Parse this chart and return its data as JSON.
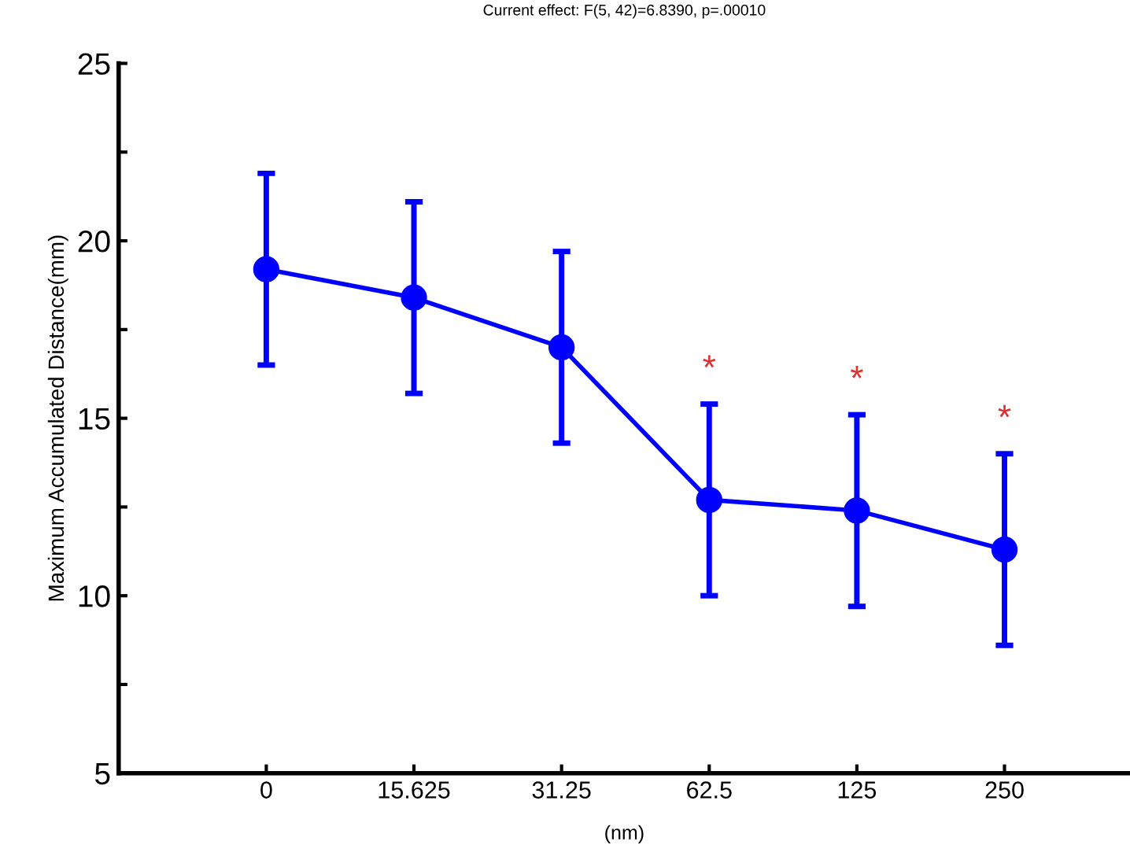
{
  "chart_data": {
    "type": "line",
    "title": "Current effect: F(5, 42)=6.8390, p=.00010",
    "xlabel": "(nm)",
    "ylabel": "Maximum Accumulated Distance(mm)",
    "categories": [
      "0",
      "15.625",
      "31.25",
      "62.5",
      "125",
      "250"
    ],
    "series": [
      {
        "color": "#0000ff",
        "values": [
          19.2,
          18.4,
          17.0,
          12.7,
          12.4,
          11.3
        ],
        "errors": [
          2.7,
          2.7,
          2.7,
          2.7,
          2.7,
          2.7
        ]
      }
    ],
    "marker": "circle",
    "line_style": "solid",
    "ylim": [
      5,
      25
    ],
    "yticks": [
      5,
      {
        "value": 7.5,
        "label": null
      },
      10,
      {
        "value": 12.5,
        "label": null
      },
      15,
      {
        "value": 17.5,
        "label": null
      },
      20,
      {
        "value": 22.5,
        "label": null
      },
      25
    ],
    "annotations": [
      "*",
      "*",
      "*"
    ],
    "grid": false,
    "legend": false
  }
}
